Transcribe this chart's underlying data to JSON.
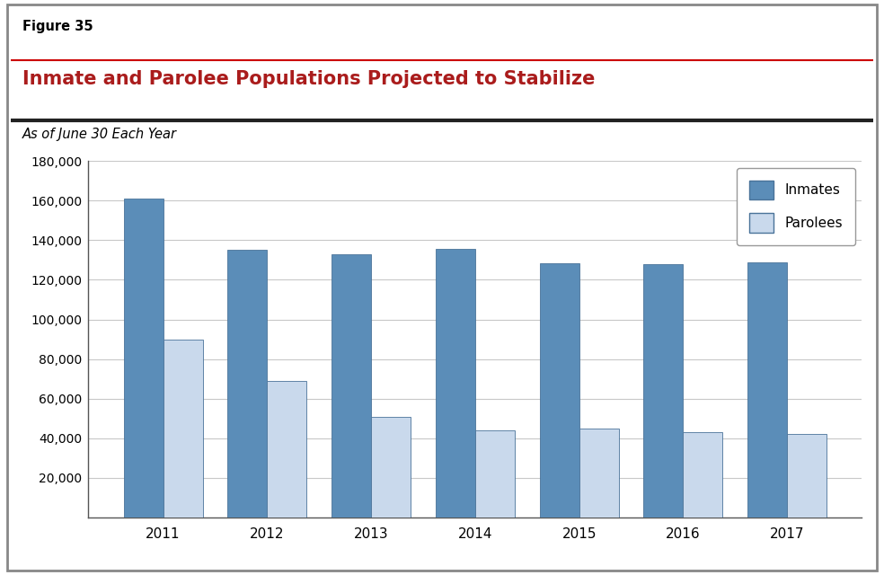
{
  "years": [
    2011,
    2012,
    2013,
    2014,
    2015,
    2016,
    2017
  ],
  "inmates": [
    161000,
    135000,
    133000,
    135500,
    128500,
    128000,
    129000
  ],
  "parolees": [
    90000,
    69000,
    51000,
    44000,
    45000,
    43000,
    42000
  ],
  "inmate_color": "#5B8DB8",
  "parolee_color": "#C9D9EC",
  "bar_edge_color": "#4A7399",
  "background_color": "#FFFFFF",
  "figure_title": "Figure 35",
  "chart_title": "Inmate and Parolee Populations Projected to Stabilize",
  "subtitle": "As of June 30 Each Year",
  "legend_labels": [
    "Inmates",
    "Parolees"
  ],
  "ylim": [
    0,
    180000
  ],
  "yticks": [
    20000,
    40000,
    60000,
    80000,
    100000,
    120000,
    140000,
    160000,
    180000
  ],
  "grid_color": "#C8C8C8",
  "title_color": "#AA1C1C",
  "figure_title_color": "#000000",
  "subtitle_color": "#000000",
  "outer_border_color": "#888888",
  "separator_line1_color": "#CC0000",
  "separator_line2_color": "#222222"
}
